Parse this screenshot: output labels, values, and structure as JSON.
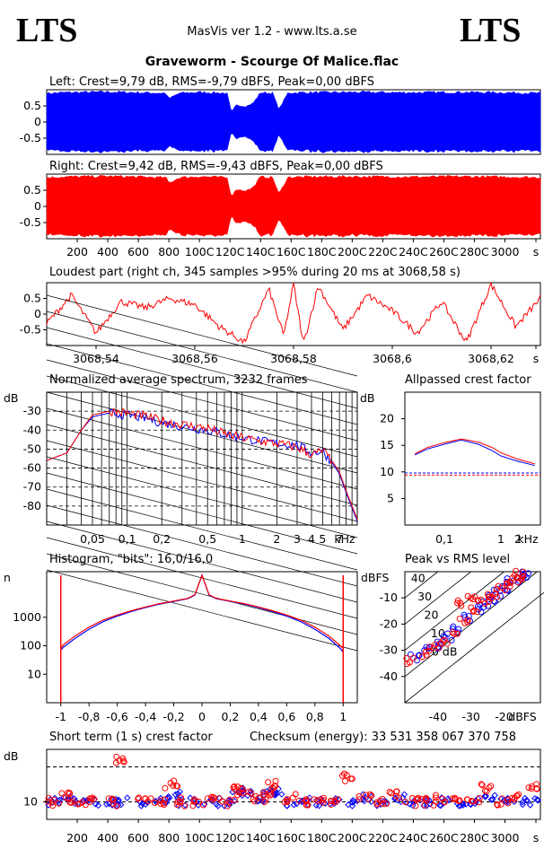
{
  "header": {
    "logo_left": "LTS",
    "logo_right": "LTS",
    "subtitle": "MasVis ver 1.2 - www.lts.a.se",
    "track_title": "Graveworm - Scourge Of Malice.flac"
  },
  "colors": {
    "left": "#0000ff",
    "right": "#ff0000",
    "axis": "#000000",
    "grid": "#000000"
  },
  "chart_data": [
    {
      "id": "left-waveform",
      "type": "area",
      "title": "Left: Crest=9,79 dB, RMS=-9,79 dBFS, Peak=0,00 dBFS",
      "yticks": [
        "0.5",
        "0",
        "-0.5"
      ],
      "ylim": [
        -1,
        1
      ],
      "xlim": [
        0,
        3232
      ],
      "envelope": [
        [
          0,
          0.92
        ],
        [
          100,
          0.95
        ],
        [
          400,
          0.97
        ],
        [
          780,
          0.93
        ],
        [
          800,
          0.75
        ],
        [
          870,
          0.93
        ],
        [
          1000,
          0.96
        ],
        [
          1180,
          0.93
        ],
        [
          1210,
          0.3
        ],
        [
          1240,
          0.55
        ],
        [
          1300,
          0.5
        ],
        [
          1350,
          0.6
        ],
        [
          1400,
          0.95
        ],
        [
          1480,
          0.93
        ],
        [
          1520,
          0.4
        ],
        [
          1580,
          0.94
        ],
        [
          1700,
          0.95
        ],
        [
          2000,
          0.96
        ],
        [
          2400,
          0.95
        ],
        [
          2700,
          0.96
        ],
        [
          3000,
          0.95
        ],
        [
          3232,
          0.93
        ]
      ]
    },
    {
      "id": "right-waveform",
      "type": "area",
      "title": "Right: Crest=9,42 dB, RMS=-9,43 dBFS, Peak=0,00 dBFS",
      "yticks": [
        "0.5",
        "0",
        "-0.5"
      ],
      "ylim": [
        -1,
        1
      ],
      "xlim": [
        0,
        3232
      ],
      "xticks": [
        "200",
        "400",
        "600",
        "800",
        "100C",
        "120C",
        "140C",
        "160C",
        "180C",
        "200C",
        "220C",
        "240C",
        "260C",
        "280C",
        "3000",
        "s"
      ],
      "envelope": [
        [
          0,
          0.93
        ],
        [
          100,
          0.95
        ],
        [
          400,
          0.97
        ],
        [
          780,
          0.93
        ],
        [
          800,
          0.75
        ],
        [
          870,
          0.93
        ],
        [
          1000,
          0.96
        ],
        [
          1180,
          0.93
        ],
        [
          1210,
          0.3
        ],
        [
          1240,
          0.55
        ],
        [
          1300,
          0.5
        ],
        [
          1350,
          0.6
        ],
        [
          1400,
          0.95
        ],
        [
          1480,
          0.93
        ],
        [
          1520,
          0.4
        ],
        [
          1580,
          0.94
        ],
        [
          1700,
          0.95
        ],
        [
          2000,
          0.96
        ],
        [
          2400,
          0.95
        ],
        [
          2700,
          0.96
        ],
        [
          3000,
          0.95
        ],
        [
          3232,
          0.93
        ]
      ]
    },
    {
      "id": "loudest-part",
      "type": "line",
      "title": "Loudest part (right ch, 345 samples >95% during 20 ms at 3068,58 s)",
      "yticks": [
        "0.5",
        "0",
        "-0.5"
      ],
      "xticks": [
        "3068,54",
        "3068,56",
        "3068,58",
        "3068,6",
        "3068,62",
        "s"
      ],
      "ylim": [
        -1,
        1
      ],
      "xlim": [
        3068.53,
        3068.63
      ],
      "x": [
        3068.53,
        3068.535,
        3068.54,
        3068.545,
        3068.55,
        3068.555,
        3068.56,
        3068.565,
        3068.57,
        3068.575,
        3068.578,
        3068.58,
        3068.582,
        3068.585,
        3068.59,
        3068.595,
        3068.6,
        3068.605,
        3068.61,
        3068.615,
        3068.62,
        3068.625,
        3068.63
      ],
      "y": [
        -0.3,
        0.6,
        -0.6,
        0.4,
        0.2,
        0.5,
        0.3,
        -0.4,
        -0.9,
        0.8,
        -0.7,
        0.95,
        -0.95,
        0.9,
        -0.5,
        0.6,
        0.1,
        -0.6,
        0.4,
        -0.9,
        0.95,
        -0.4,
        0.5
      ]
    },
    {
      "id": "average-spectrum",
      "type": "line",
      "title": "Normalized average spectrum, 3232 frames",
      "ylabel": "dB",
      "yticks": [
        "-30",
        "-40",
        "-50",
        "-60",
        "-70",
        "-80"
      ],
      "xticks": [
        "0,05",
        "0,1",
        "0,2",
        "0,5",
        "1",
        "2",
        "3",
        "4",
        "5",
        "7",
        "kHz"
      ],
      "ylim": [
        -90,
        -20
      ],
      "xlim_khz": [
        0.02,
        10
      ],
      "x_khz": [
        0.02,
        0.03,
        0.04,
        0.05,
        0.07,
        0.1,
        0.15,
        0.2,
        0.3,
        0.5,
        0.7,
        1,
        1.5,
        2,
        3,
        4,
        5,
        6,
        7,
        8,
        10
      ],
      "series": [
        {
          "name": "left",
          "values": [
            -56,
            -52,
            -40,
            -33,
            -31,
            -32,
            -34,
            -36,
            -38,
            -40,
            -42,
            -44,
            -46,
            -47,
            -48,
            -52,
            -51,
            -57,
            -63,
            -73,
            -88
          ]
        },
        {
          "name": "right",
          "values": [
            -56,
            -52,
            -40,
            -32,
            -30,
            -31,
            -33,
            -35,
            -37,
            -39,
            -42,
            -44,
            -46,
            -47,
            -49,
            -53,
            -51,
            -56,
            -62,
            -72,
            -87
          ]
        }
      ]
    },
    {
      "id": "allpassed-crest",
      "type": "line",
      "title": "Allpassed crest factor",
      "ylabel": "dB",
      "yticks": [
        "20",
        "15",
        "10",
        "5"
      ],
      "xticks": [
        "0,1",
        "1",
        "2",
        "kHz"
      ],
      "ylim": [
        0,
        25
      ],
      "x_khz": [
        0.03,
        0.05,
        0.1,
        0.2,
        0.4,
        0.7,
        1,
        2,
        4
      ],
      "series": [
        {
          "name": "left",
          "values": [
            13.2,
            14.3,
            15.2,
            16.0,
            15.2,
            14.0,
            13.0,
            12.0,
            11.2
          ]
        },
        {
          "name": "right",
          "values": [
            13.4,
            14.6,
            15.5,
            16.2,
            15.6,
            14.6,
            13.6,
            12.4,
            11.5
          ]
        }
      ],
      "reference_lines": [
        {
          "name": "left",
          "value": 9.8
        },
        {
          "name": "right",
          "value": 9.4
        }
      ]
    },
    {
      "id": "histogram",
      "type": "line",
      "title": "Histogram, \"bits\": 16,0/16,0",
      "ylabel": "n",
      "yticks": [
        "1000",
        "100",
        "10"
      ],
      "xticks": [
        "-1",
        "-0,8",
        "-0,6",
        "-0,4",
        "-0,2",
        "0",
        "0,2",
        "0,4",
        "0,6",
        "0,8",
        "1"
      ],
      "xlim": [
        -1.1,
        1.1
      ],
      "x": [
        -1,
        -0.98,
        -0.9,
        -0.8,
        -0.7,
        -0.6,
        -0.5,
        -0.4,
        -0.3,
        -0.2,
        -0.1,
        -0.05,
        0,
        0.05,
        0.1,
        0.2,
        0.3,
        0.4,
        0.5,
        0.6,
        0.7,
        0.8,
        0.9,
        0.98,
        1
      ],
      "series": [
        {
          "name": "left",
          "values": [
            70,
            90,
            180,
            380,
            700,
            1100,
            1600,
            2200,
            2900,
            3600,
            4500,
            6000,
            30000,
            6000,
            4500,
            3600,
            2900,
            2200,
            1600,
            1100,
            700,
            380,
            180,
            80,
            60
          ]
        },
        {
          "name": "right",
          "values": [
            80,
            110,
            220,
            450,
            800,
            1200,
            1700,
            2300,
            3000,
            3700,
            4600,
            6200,
            30000,
            6200,
            4600,
            3700,
            3000,
            2300,
            1700,
            1200,
            800,
            450,
            220,
            100,
            80
          ]
        }
      ]
    },
    {
      "id": "peak-vs-rms",
      "type": "scatter",
      "title": "Peak vs RMS level",
      "ylabel": "dBFS",
      "yticks": [
        "-10",
        "-20",
        "-30",
        "-40"
      ],
      "xticks": [
        "-40",
        "-30",
        "-20",
        "dBFS"
      ],
      "diag_labels": [
        "40",
        "30",
        "20",
        "10",
        "0 dB"
      ],
      "series": [
        {
          "name": "left",
          "points": [
            [
              -47,
              -33
            ],
            [
              -43,
              -30
            ],
            [
              -40,
              -28
            ],
            [
              -37,
              -25
            ],
            [
              -34,
              -22
            ],
            [
              -31,
              -18
            ],
            [
              -28,
              -14
            ],
            [
              -26,
              -12
            ],
            [
              -24,
              -10
            ],
            [
              -22,
              -8
            ],
            [
              -20,
              -6
            ],
            [
              -18,
              -4
            ],
            [
              -16,
              -3
            ],
            [
              -15,
              -2
            ],
            [
              -14,
              -1
            ]
          ]
        },
        {
          "name": "right",
          "points": [
            [
              -48,
              -34
            ],
            [
              -44,
              -31
            ],
            [
              -41,
              -29
            ],
            [
              -38,
              -26
            ],
            [
              -35,
              -23
            ],
            [
              -32,
              -19
            ],
            [
              -29,
              -15
            ],
            [
              -27,
              -12
            ],
            [
              -25,
              -10
            ],
            [
              -23,
              -9
            ],
            [
              -21,
              -7
            ],
            [
              -19,
              -5
            ],
            [
              -17,
              -3
            ],
            [
              -16,
              -2
            ],
            [
              -15,
              -1
            ],
            [
              -33,
              -12
            ],
            [
              -30,
              -9
            ]
          ]
        }
      ]
    },
    {
      "id": "short-term-crest",
      "type": "scatter",
      "title": "Short term (1 s) crest factor",
      "checksum": "Checksum (energy):  33 531 358 067 370 758",
      "ylabel": "dB",
      "yticks": [
        "10"
      ],
      "xticks": [
        "200",
        "400",
        "600",
        "800",
        "100C",
        "120C",
        "140C",
        "160C",
        "180C",
        "200C",
        "220C",
        "240C",
        "260C",
        "280C",
        "3000",
        "s"
      ],
      "xlim": [
        0,
        3232
      ],
      "ylim": [
        5,
        25
      ],
      "dashed_lines": [
        10,
        20
      ],
      "series": [
        {
          "name": "left",
          "x": [
            50,
            120,
            200,
            300,
            430,
            500,
            650,
            750,
            830,
            900,
            1000,
            1100,
            1200,
            1250,
            1300,
            1400,
            1450,
            1500,
            1600,
            1700,
            1800,
            1900,
            2000,
            2100,
            2200,
            2300,
            2400,
            2500,
            2600,
            2700,
            2800,
            2900,
            3000,
            3100,
            3200
          ],
          "y": [
            10,
            11,
            10,
            9.5,
            10,
            10,
            10,
            10,
            12,
            10,
            10,
            10,
            10,
            13,
            12,
            11,
            12,
            13,
            10,
            10,
            10,
            10,
            10,
            11,
            10,
            11,
            10,
            10,
            10,
            10,
            10,
            11,
            10,
            10,
            10
          ]
        },
        {
          "name": "right",
          "x": [
            40,
            110,
            190,
            290,
            420,
            470,
            640,
            740,
            820,
            890,
            990,
            1090,
            1190,
            1240,
            1290,
            1390,
            1440,
            1490,
            1590,
            1690,
            1790,
            1890,
            1960,
            2090,
            2190,
            2290,
            2390,
            2490,
            2590,
            2690,
            2790,
            2890,
            2990,
            3090,
            3190
          ],
          "y": [
            10,
            12,
            10,
            10,
            10,
            22,
            10,
            10,
            15,
            10,
            10,
            11,
            10,
            14,
            13,
            11,
            13,
            15,
            11,
            10,
            10,
            10,
            17,
            11,
            10,
            12,
            10,
            10,
            11,
            10,
            10,
            14,
            10,
            11,
            14
          ]
        }
      ]
    }
  ]
}
